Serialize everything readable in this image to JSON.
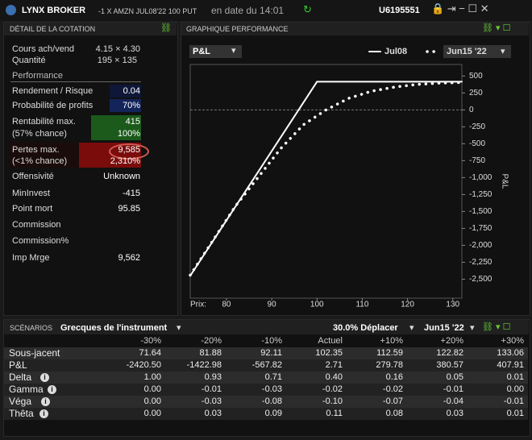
{
  "header": {
    "brand": "LYNX BROKER",
    "instrument": "-1 X AMZN JUL08'22 100 PUT",
    "date": "en date du 14:01",
    "account": "U6195551"
  },
  "details": {
    "title": "DÉTAIL DE LA COTATION",
    "bid_ask_label": "Cours ach/vend",
    "bid_ask": "4.15 × 4.30",
    "quantity_label": "Quantité",
    "quantity": "195 × 135",
    "section": "Performance",
    "return_risk_label": "Rendement / Risque",
    "return_risk": "0.04",
    "profit_prob_label": "Probabilité de profits",
    "profit_prob": "70%",
    "max_profit_label": "Rentabilité max.",
    "max_profit": "415",
    "max_profit_chance_label": "(57% chance)",
    "max_profit_pct": "100%",
    "max_loss_label": "Pertes max.",
    "max_loss": "9,585",
    "max_loss_chance_label": "(<1% chance)",
    "max_loss_pct": "2,310%",
    "aggressiveness_label": "Offensivité",
    "aggressiveness": "Unknown",
    "min_invest_label": "MinInvest",
    "min_invest": "-415",
    "breakeven_label": "Point mort",
    "breakeven": "95.85",
    "commission_label": "Commission",
    "commission_pct_label": "Commission%",
    "margin_label": "Imp Mrge",
    "margin": "9,562"
  },
  "chart_panel": {
    "title": "GRAPHIQUE PERFORMANCE",
    "metric": "P&L"
  },
  "chart_data": {
    "type": "line",
    "y_label": "P&L",
    "x_label": "Prix:",
    "xlim": [
      72,
      132
    ],
    "xticks": [
      80,
      90,
      100,
      110,
      120,
      130
    ],
    "ylim": [
      -2780,
      670
    ],
    "yticks": [
      500,
      250,
      0,
      -250,
      -500,
      -750,
      {
        "value": -1000,
        "label": "-1,000"
      },
      {
        "value": -1250,
        "label": "-1,250"
      },
      {
        "value": -1500,
        "label": "-1,500"
      },
      {
        "value": -1750,
        "label": "-1,750"
      },
      {
        "value": -2000,
        "label": "-2,000"
      },
      {
        "value": -2250,
        "label": "-2,250"
      },
      {
        "value": -2500,
        "label": "-2,500"
      }
    ],
    "series": [
      {
        "name": "Jul08",
        "color": "#ffffff",
        "style": "solid",
        "x": [
          72,
          100,
          132
        ],
        "values": [
          -2450,
          415,
          415
        ]
      },
      {
        "name": "Jun15 '22",
        "color": "#ffffff",
        "style": "dotted",
        "x": [
          72,
          82,
          92,
          97,
          102,
          107,
          112,
          117,
          122,
          127,
          132
        ],
        "values": [
          -2440,
          -1420,
          -570,
          -220,
          0,
          170,
          275,
          335,
          375,
          395,
          405
        ]
      }
    ]
  },
  "scenarios": {
    "title": "SCÉNARIOS",
    "greeks": "Grecques de l'instrument",
    "move": "30.0% Déplacer",
    "date": "Jun15 '22",
    "columns": [
      "-30%",
      "-20%",
      "-10%",
      "Actuel",
      "+10%",
      "+20%",
      "+30%"
    ],
    "rows": [
      {
        "label": "Sous-jacent",
        "values": [
          "71.64",
          "81.88",
          "92.11",
          "102.35",
          "112.59",
          "122.82",
          "133.06"
        ]
      },
      {
        "label": "P&L",
        "values": [
          "-2420.50",
          "-1422.98",
          "-567.82",
          "2.71",
          "279.78",
          "380.57",
          "407.91"
        ]
      },
      {
        "label": "Delta",
        "values": [
          "1.00",
          "0.93",
          "0.71",
          "0.40",
          "0.16",
          "0.05",
          "0.01"
        ]
      },
      {
        "label": "Gamma",
        "values": [
          "0.00",
          "-0.01",
          "-0.03",
          "-0.02",
          "-0.02",
          "-0.01",
          "0.00"
        ]
      },
      {
        "label": "Véga",
        "values": [
          "0.00",
          "-0.03",
          "-0.08",
          "-0.10",
          "-0.07",
          "-0.04",
          "-0.01"
        ]
      },
      {
        "label": "Thêta",
        "values": [
          "0.00",
          "0.03",
          "0.09",
          "0.11",
          "0.08",
          "0.03",
          "0.01"
        ]
      }
    ]
  }
}
